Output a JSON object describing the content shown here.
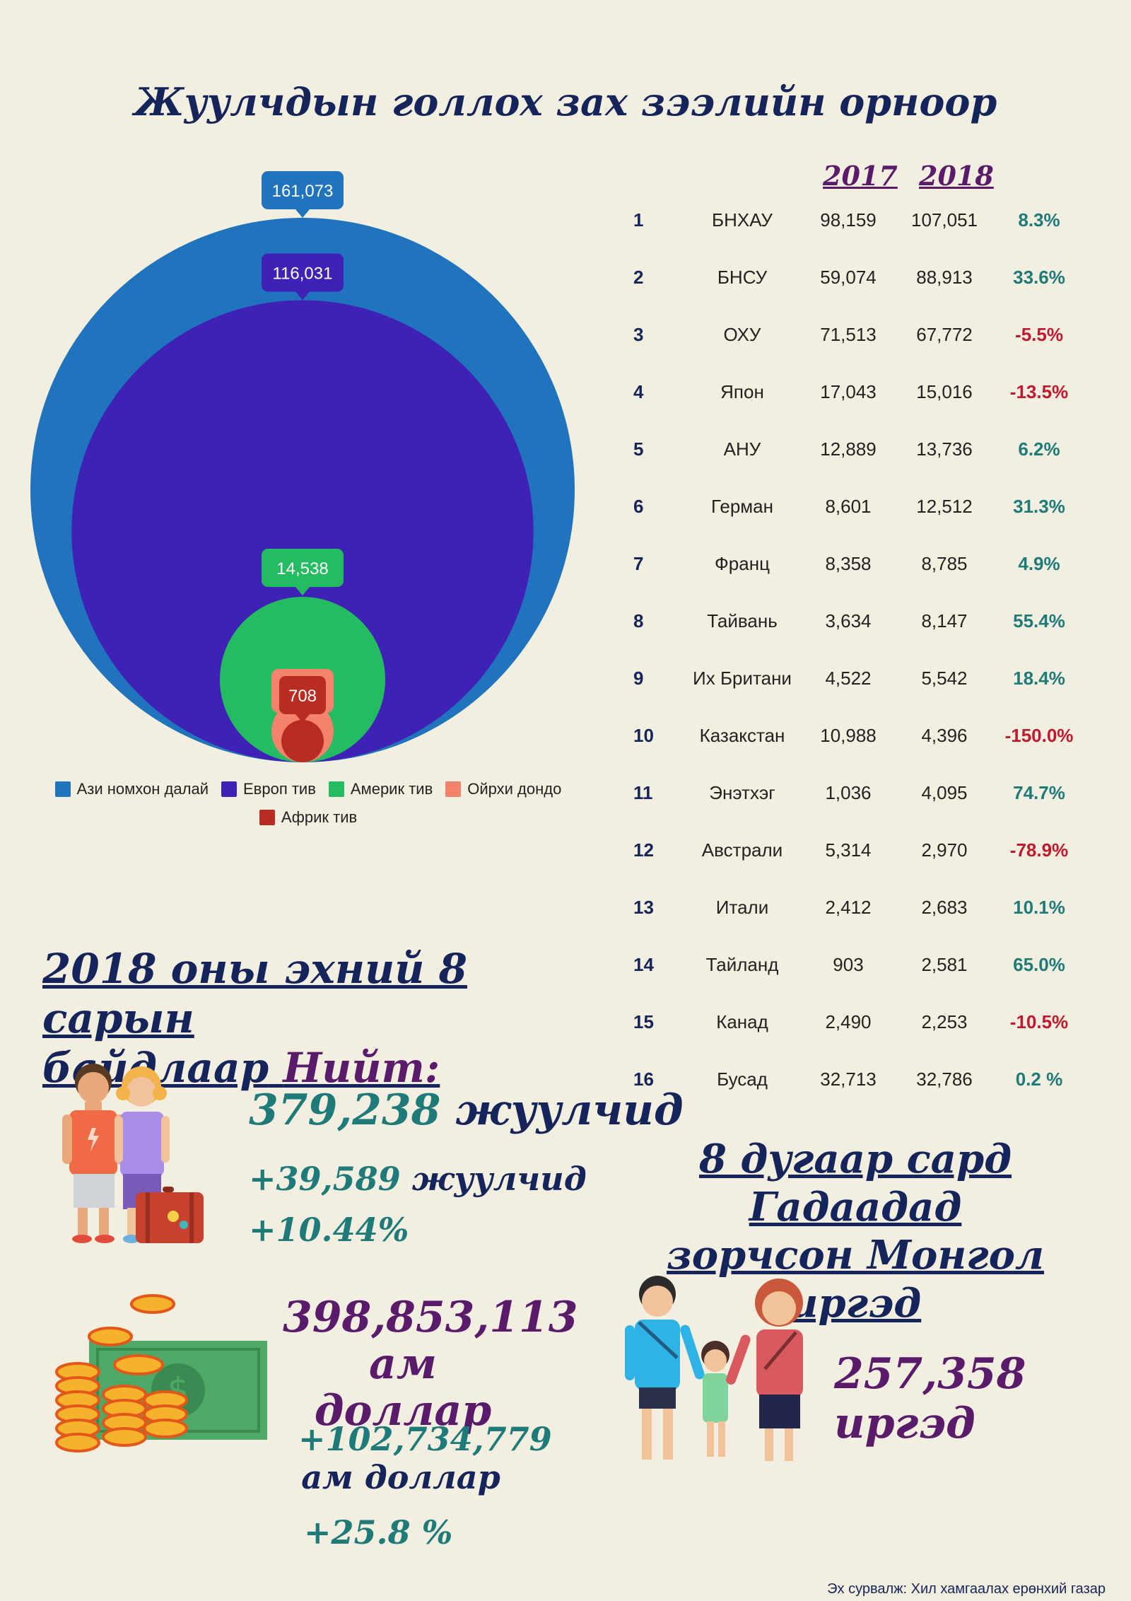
{
  "title": "Жуулчдын голлох зах зээлийн орноор",
  "chart_data": [
    {
      "type": "bubble",
      "series": [
        {
          "name": "Ази номхон далай",
          "value": 161073,
          "color": "#1f74bd"
        },
        {
          "name": "Европ тив",
          "value": 116031,
          "color": "#3f21b6"
        },
        {
          "name": "Америк тив",
          "value": 14538,
          "color": "#23bc60"
        },
        {
          "name": "Ойрхи дондо",
          "value": null,
          "color": "#f5826a"
        },
        {
          "name": "Африк тив",
          "value": 708,
          "color": "#b82c22"
        }
      ],
      "labels": [
        "161,073",
        "116,031",
        "14,538",
        "708"
      ],
      "legend_position": "bottom"
    },
    {
      "type": "table",
      "columns": [
        "2017",
        "2018"
      ],
      "rows": [
        {
          "rank": "1",
          "country": "БНХАУ",
          "y2017": "98,159",
          "y2018": "107,051",
          "change": "8.3%",
          "sign": "pos"
        },
        {
          "rank": "2",
          "country": "БНСУ",
          "y2017": "59,074",
          "y2018": "88,913",
          "change": "33.6%",
          "sign": "pos"
        },
        {
          "rank": "3",
          "country": "ОХУ",
          "y2017": "71,513",
          "y2018": "67,772",
          "change": "-5.5%",
          "sign": "neg"
        },
        {
          "rank": "4",
          "country": "Япон",
          "y2017": "17,043",
          "y2018": "15,016",
          "change": "-13.5%",
          "sign": "neg"
        },
        {
          "rank": "5",
          "country": "АНУ",
          "y2017": "12,889",
          "y2018": "13,736",
          "change": "6.2%",
          "sign": "pos"
        },
        {
          "rank": "6",
          "country": "Герман",
          "y2017": "8,601",
          "y2018": "12,512",
          "change": "31.3%",
          "sign": "pos"
        },
        {
          "rank": "7",
          "country": "Франц",
          "y2017": "8,358",
          "y2018": "8,785",
          "change": "4.9%",
          "sign": "pos"
        },
        {
          "rank": "8",
          "country": "Тайвань",
          "y2017": "3,634",
          "y2018": "8,147",
          "change": "55.4%",
          "sign": "pos"
        },
        {
          "rank": "9",
          "country": "Их Британи",
          "y2017": "4,522",
          "y2018": "5,542",
          "change": "18.4%",
          "sign": "pos"
        },
        {
          "rank": "10",
          "country": "Казакстан",
          "y2017": "10,988",
          "y2018": "4,396",
          "change": "-150.0%",
          "sign": "neg"
        },
        {
          "rank": "11",
          "country": "Энэтхэг",
          "y2017": "1,036",
          "y2018": "4,095",
          "change": "74.7%",
          "sign": "pos"
        },
        {
          "rank": "12",
          "country": "Австрали",
          "y2017": "5,314",
          "y2018": "2,970",
          "change": "-78.9%",
          "sign": "neg"
        },
        {
          "rank": "13",
          "country": "Итали",
          "y2017": "2,412",
          "y2018": "2,683",
          "change": "10.1%",
          "sign": "pos"
        },
        {
          "rank": "14",
          "country": "Тайланд",
          "y2017": "903",
          "y2018": "2,581",
          "change": "65.0%",
          "sign": "pos"
        },
        {
          "rank": "15",
          "country": "Канад",
          "y2017": "2,490",
          "y2018": "2,253",
          "change": "-10.5%",
          "sign": "neg"
        },
        {
          "rank": "16",
          "country": "Бусад",
          "y2017": "32,713",
          "y2018": "32,786",
          "change": "0.2 %",
          "sign": "pos"
        }
      ]
    }
  ],
  "totals": {
    "title_line1": "2018 оны эхний  8 сарын",
    "title_line2_a": "байдлаар",
    "title_line2_b": "Нийт:",
    "tourists_number": "379,238",
    "tourists_unit": "жуулчид",
    "tourists_diff_number": "+39,589",
    "tourists_diff_unit": "жуулчид",
    "tourists_pct": "+10.44%",
    "money_number": "398,853,113",
    "money_unit": "ам доллар",
    "money_diff_number": "+102,734,779",
    "money_diff_unit": "ам доллар",
    "money_pct": "+25.8 %"
  },
  "outbound": {
    "title_line1": "8 дугаар сард Гадаадад",
    "title_line2": "зорчсон Монгол иргэд",
    "count": "257,358  иргэд"
  },
  "source": "Эх сурвалж: Хил хамгаалах ерөнхий газар"
}
